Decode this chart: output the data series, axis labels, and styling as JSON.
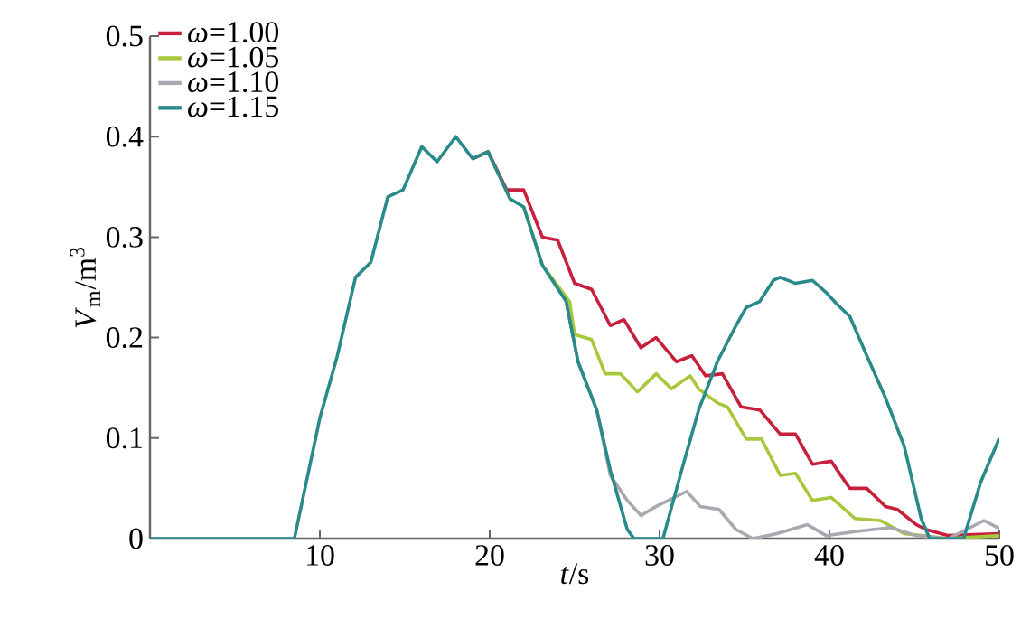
{
  "chart_data": {
    "type": "line",
    "xlabel": "*t*/s",
    "ylabel": "*V*$_{m}$/m$^{3}$",
    "xlim": [
      0,
      50
    ],
    "ylim": [
      0,
      0.5
    ],
    "xticks": [
      10,
      20,
      30,
      40,
      50
    ],
    "yticks": [
      0,
      0.1,
      0.2,
      0.3,
      0.4,
      0.5
    ],
    "legend": "top left",
    "grid": false,
    "marker": "none",
    "line_style": "solid",
    "series": [
      {
        "name": "*ω*=1.00",
        "color": "#c8203c",
        "x": [
          19,
          19.9,
          21,
          22,
          23.1,
          24,
          25,
          26,
          27.1,
          27.9,
          28.9,
          29.8,
          31,
          31.9,
          32.7,
          33.7,
          34.8,
          35.9,
          37.1,
          38,
          39,
          40.1,
          41.2,
          42.2,
          43.3,
          44,
          45.1,
          45.7,
          47,
          50
        ],
        "values": [
          0.378,
          0.385,
          0.347,
          0.347,
          0.3,
          0.297,
          0.254,
          0.248,
          0.212,
          0.218,
          0.19,
          0.2,
          0.176,
          0.182,
          0.162,
          0.164,
          0.131,
          0.128,
          0.104,
          0.104,
          0.074,
          0.077,
          0.05,
          0.05,
          0.032,
          0.029,
          0.014,
          0.009,
          0.003,
          0.005
        ]
      },
      {
        "name": "*ω*=1.05",
        "color": "#a8c83c",
        "x": [
          22,
          23.1,
          24.7,
          25,
          26,
          26.8,
          27.7,
          28.7,
          29.8,
          30.7,
          31.8,
          32.3,
          33.4,
          34,
          35.1,
          36,
          37.1,
          38,
          39,
          40.1,
          41.5,
          43,
          44.4,
          47,
          50
        ],
        "values": [
          0.33,
          0.272,
          0.236,
          0.203,
          0.198,
          0.164,
          0.164,
          0.146,
          0.164,
          0.149,
          0.162,
          0.149,
          0.135,
          0.131,
          0.099,
          0.099,
          0.063,
          0.065,
          0.038,
          0.041,
          0.02,
          0.018,
          0.005,
          0,
          0.003
        ]
      },
      {
        "name": "*ω*=1.10",
        "color": "#a8a8b0",
        "x": [
          24.5,
          25.2,
          26.3,
          27.1,
          28.1,
          28.9,
          29.8,
          31.6,
          32.4,
          33.5,
          34.5,
          35.5,
          36.9,
          38.7,
          39.8,
          41.5,
          43.6,
          45.1,
          47,
          49.1,
          50
        ],
        "values": [
          0.236,
          0.176,
          0.128,
          0.063,
          0.038,
          0.023,
          0.032,
          0.047,
          0.032,
          0.029,
          0.009,
          0,
          0.005,
          0.014,
          0.003,
          0.007,
          0.011,
          0.003,
          0,
          0.018,
          0.01
        ]
      },
      {
        "name": "*ω*=1.15",
        "color": "#2a8a8a",
        "x": [
          0,
          8.5,
          10,
          11,
          12.1,
          13,
          14,
          14.9,
          16,
          16.9,
          18,
          19,
          19.9,
          21.2,
          22,
          23.1,
          24.5,
          25.2,
          26.3,
          27.1,
          28.1,
          28.5,
          30.2,
          31.3,
          32.3,
          33.4,
          34.5,
          35.1,
          35.9,
          36.7,
          37.1,
          38,
          39,
          39.8,
          40.4,
          41.2,
          42.2,
          43.3,
          44.4,
          45.4,
          45.9,
          47.9,
          48.9,
          50
        ],
        "values": [
          0,
          0,
          0.12,
          0.18,
          0.26,
          0.275,
          0.34,
          0.347,
          0.39,
          0.375,
          0.4,
          0.378,
          0.385,
          0.338,
          0.33,
          0.272,
          0.236,
          0.176,
          0.128,
          0.068,
          0.009,
          0,
          0,
          0.068,
          0.128,
          0.176,
          0.212,
          0.23,
          0.236,
          0.257,
          0.26,
          0.254,
          0.257,
          0.245,
          0.234,
          0.221,
          0.182,
          0.14,
          0.092,
          0.02,
          0,
          0,
          0.056,
          0.1
        ]
      }
    ]
  }
}
